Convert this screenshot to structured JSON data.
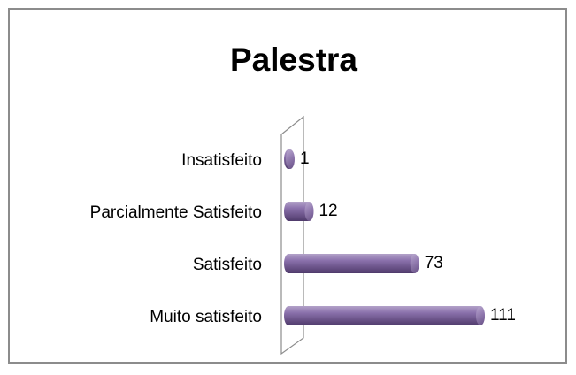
{
  "chart_data": {
    "type": "bar",
    "orientation": "horizontal",
    "title": "Palestra",
    "categories": [
      "Insatisfeito",
      "Parcialmente Satisfeito",
      "Satisfeito",
      "Muito satisfeito"
    ],
    "values": [
      1,
      12,
      73,
      111
    ],
    "color": "#8064a2"
  }
}
